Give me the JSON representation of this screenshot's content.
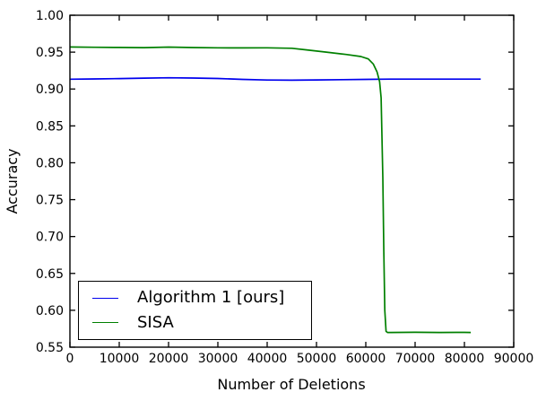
{
  "chart_data": {
    "type": "line",
    "title": "",
    "xlabel": "Number of Deletions",
    "ylabel": "Accuracy",
    "xlim": [
      0,
      90000
    ],
    "ylim": [
      0.55,
      1.0
    ],
    "grid": false,
    "legend_position": "lower left",
    "frame_color": "#000000",
    "background_color": "#ffffff",
    "xticks": {
      "values": [
        0,
        10000,
        20000,
        30000,
        40000,
        50000,
        60000,
        70000,
        80000,
        90000
      ],
      "labels": [
        "0",
        "10000",
        "20000",
        "30000",
        "40000",
        "50000",
        "60000",
        "70000",
        "80000",
        "90000"
      ]
    },
    "yticks": {
      "values": [
        0.55,
        0.6,
        0.65,
        0.7,
        0.75,
        0.8,
        0.85,
        0.9,
        0.95,
        1.0
      ],
      "labels": [
        "0.55",
        "0.60",
        "0.65",
        "0.70",
        "0.75",
        "0.80",
        "0.85",
        "0.90",
        "0.95",
        "1.00"
      ]
    },
    "series": [
      {
        "name": "Algorithm 1 [ours]",
        "color": "#0000ee",
        "x": [
          0,
          5000,
          10000,
          15000,
          20000,
          25000,
          30000,
          35000,
          40000,
          45000,
          50000,
          55000,
          60000,
          65000,
          70000,
          75000,
          80000,
          83300
        ],
        "y": [
          0.9133,
          0.9136,
          0.9141,
          0.9147,
          0.9152,
          0.9149,
          0.9142,
          0.9131,
          0.9122,
          0.9119,
          0.9123,
          0.9127,
          0.9131,
          0.9134,
          0.9134,
          0.9134,
          0.9134,
          0.9134
        ]
      },
      {
        "name": "SISA",
        "color": "#008000",
        "x": [
          0,
          5000,
          10000,
          15000,
          20000,
          25000,
          30000,
          35000,
          40000,
          45000,
          48000,
          52000,
          56000,
          59000,
          60500,
          61500,
          62300,
          62800,
          63100,
          63450,
          63650,
          63850,
          64100,
          64400,
          65000,
          70000,
          75000,
          80000,
          81300
        ],
        "y": [
          0.957,
          0.9566,
          0.9563,
          0.9561,
          0.9568,
          0.9562,
          0.9559,
          0.9557,
          0.9559,
          0.9553,
          0.953,
          0.95,
          0.9468,
          0.944,
          0.9408,
          0.934,
          0.923,
          0.91,
          0.888,
          0.78,
          0.68,
          0.6,
          0.5715,
          0.57,
          0.57,
          0.5702,
          0.57,
          0.5701,
          0.57
        ]
      }
    ]
  }
}
